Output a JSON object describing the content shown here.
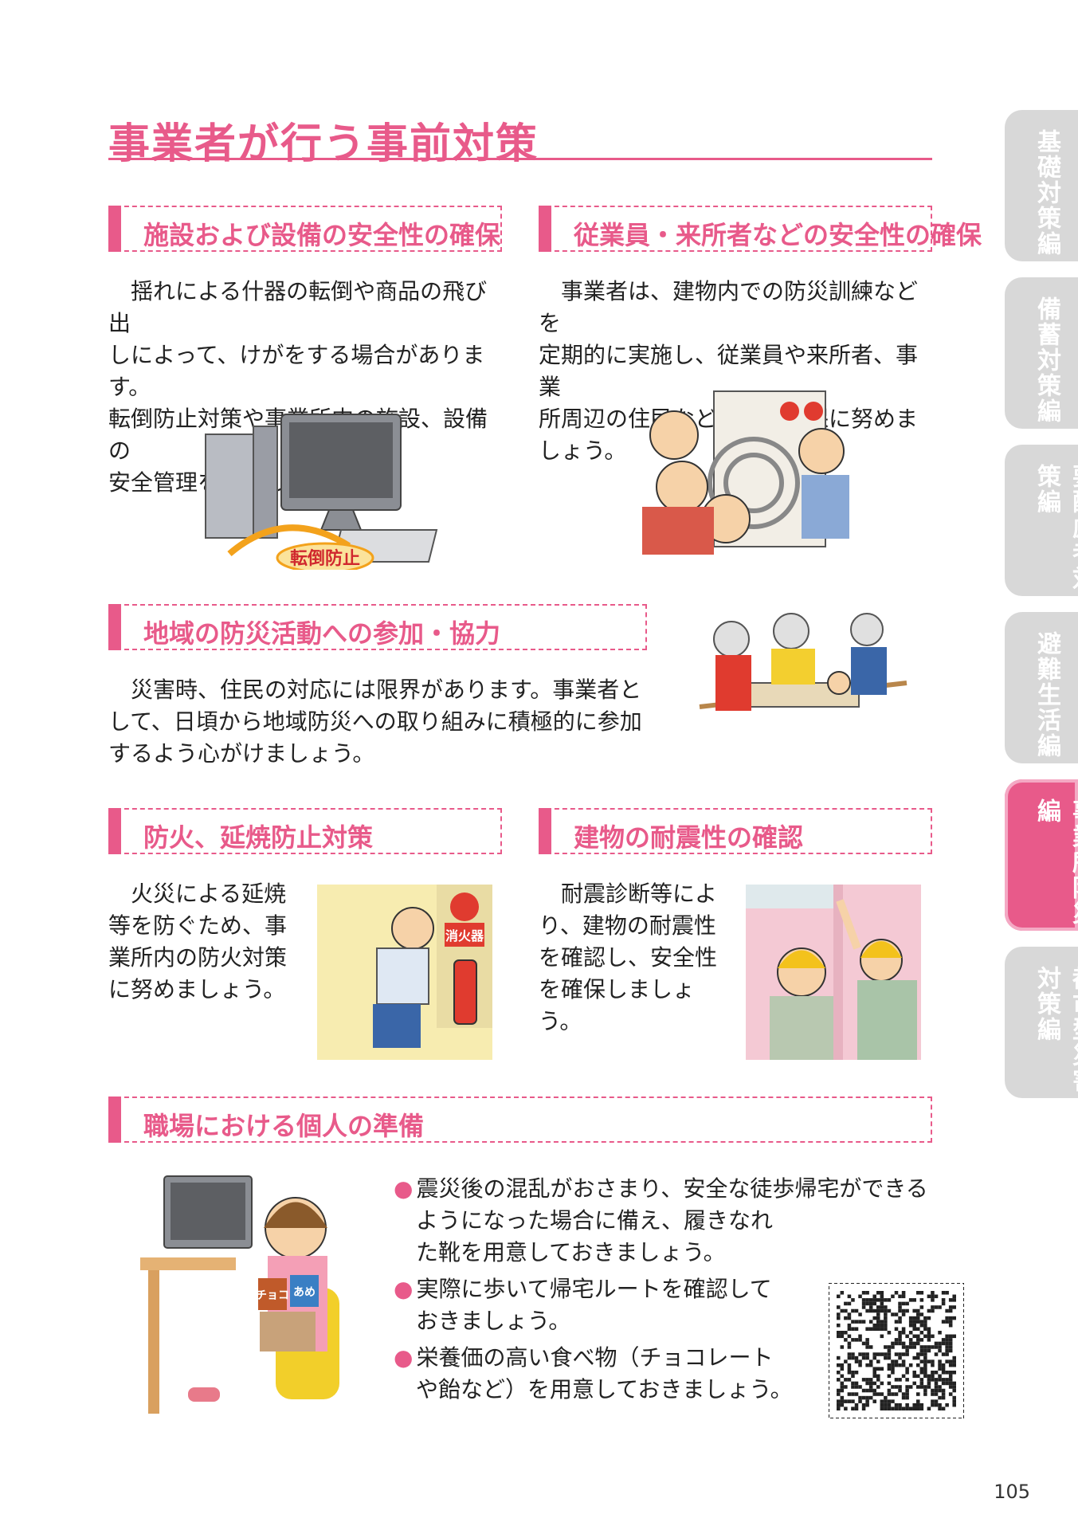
{
  "title": "事業者が行う事前対策",
  "tabs": [
    "基礎対策編",
    "備蓄対策編",
    "要配慮者対策編",
    "避難生活編",
    "事業所防災編",
    "都市型災害対策編"
  ],
  "sections": {
    "s1": {
      "title": "施設および設備の安全性の確保",
      "lines": [
        "　揺れによる什器の転倒や商品の飛び出",
        "しによって、けがをする場合があります。",
        "転倒防止対策や事業所内の施設、設備の",
        "安全管理を徹底しましょう。"
      ]
    },
    "s2": {
      "title": "従業員・来所者などの安全性の確保",
      "lines": [
        "　事業者は、建物内での防災訓練などを",
        "定期的に実施し、従業員や来所者、事業",
        "所周辺の住民などの安全確保に努めま",
        "しょう。"
      ]
    },
    "s3": {
      "title": "地域の防災活動への参加・協力",
      "lines": [
        "　災害時、住民の対応には限界があります。事業者と",
        "して、日頃から地域防災への取り組みに積極的に参加",
        "するよう心がけましょう。"
      ]
    },
    "s4": {
      "title": "防火、延焼防止対策",
      "lines": [
        "　火災による延焼",
        "等を防ぐため、事",
        "業所内の防火対策",
        "に努めましょう。"
      ]
    },
    "s5": {
      "title": "建物の耐震性の確認",
      "lines": [
        "　耐震診断等によ",
        "り、建物の耐震性",
        "を確認し、安全性",
        "を確保しましょう。"
      ]
    },
    "s6": {
      "title": "職場における個人の準備",
      "bullets": [
        [
          "震災後の混乱がおさまり、安全な徒歩帰宅ができる",
          "ようになった場合に備え、履きなれ",
          "た靴を用意しておきましょう。"
        ],
        [
          "実際に歩いて帰宅ルートを確認して",
          "おきましょう。"
        ],
        [
          "栄養価の高い食べ物（チョコレート",
          "や飴など）を用意しておきましょう。"
        ]
      ]
    }
  },
  "illustrations": {
    "tentou_label": "転倒防止",
    "extinguisher_label": "消火器",
    "choco_label": "チョコ",
    "ame_label": "あめ"
  },
  "page_number": "105",
  "colors": {
    "accent": "#e85a8a",
    "tab_gray": "#d8d8d8"
  }
}
